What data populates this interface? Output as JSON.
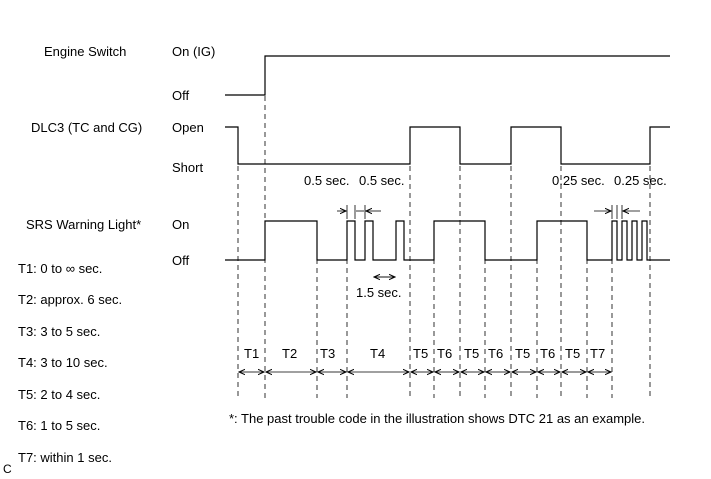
{
  "signals": {
    "engine_switch": {
      "name": "Engine Switch",
      "high": "On (IG)",
      "low": "Off"
    },
    "dlc3": {
      "name": "DLC3 (TC and CG)",
      "high": "Open",
      "low": "Short"
    },
    "srs": {
      "name": "SRS Warning Light*",
      "high": "On",
      "low": "Off"
    }
  },
  "durations": {
    "half_a": "0.5 sec.",
    "half_b": "0.5 sec.",
    "quarter_a": "0.25 sec.",
    "quarter_b": "0.25 sec.",
    "one_five": "1.5 sec."
  },
  "periods": [
    "T1",
    "T2",
    "T3",
    "T4",
    "T5",
    "T6",
    "T5",
    "T6",
    "T5",
    "T6",
    "T5",
    "T7"
  ],
  "legend": [
    "T1: 0 to ∞ sec.",
    "T2: approx. 6 sec.",
    "T3: 3 to 5 sec.",
    "T4: 3 to 10 sec.",
    "T5: 2 to 4 sec.",
    "T6: 1 to 5 sec.",
    "T7: within 1 sec."
  ],
  "note": "*: The past trouble code in the illustration shows DTC 21 as an example.",
  "corner_mark": "C"
}
